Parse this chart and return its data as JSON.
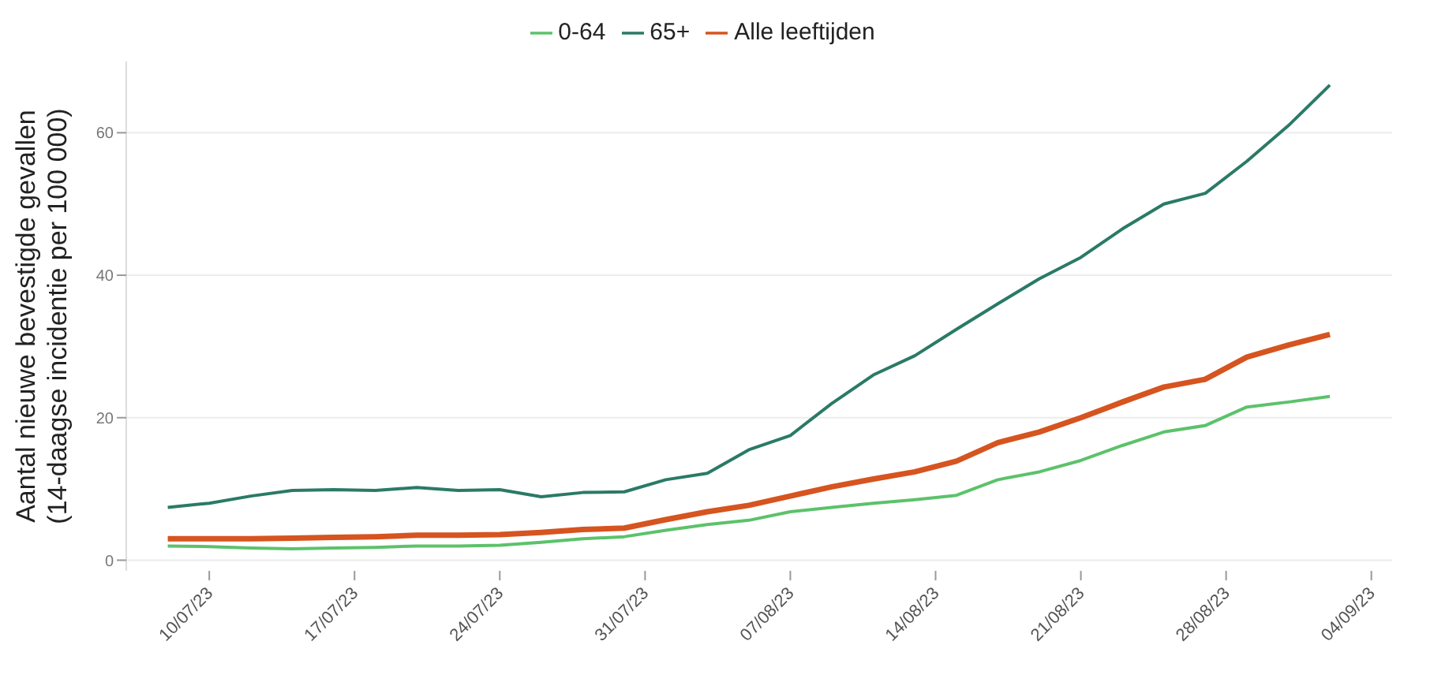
{
  "chart_data": {
    "type": "line",
    "ylabel": "Aantal nieuwe bevestigde gevallen\n(14-daagse incidentie per 100 000)",
    "x": [
      "--07-08",
      "--07-10",
      "--07-12",
      "--07-14",
      "--07-16",
      "--07-18",
      "--07-20",
      "--07-22",
      "--07-24",
      "--07-26",
      "--07-28",
      "--07-30",
      "--08-01",
      "--08-03",
      "--08-05",
      "--08-07",
      "--08-09",
      "--08-11",
      "--08-13",
      "--08-15",
      "--08-17",
      "--08-19",
      "--08-21",
      "--08-23",
      "--08-25",
      "--08-27",
      "--08-29",
      "--08-31",
      "--09-02"
    ],
    "series": [
      {
        "name": "0-64",
        "color": "#5cc26a",
        "values": [
          2.0,
          1.9,
          1.7,
          1.6,
          1.7,
          1.8,
          2.0,
          2.0,
          2.1,
          2.5,
          3.0,
          3.3,
          4.2,
          5.0,
          5.6,
          6.8,
          7.4,
          8.0,
          8.5,
          9.1,
          11.3,
          12.4,
          14.0,
          16.1,
          18.0,
          18.9,
          21.5,
          22.2,
          23.0
        ]
      },
      {
        "name": "65+",
        "color": "#2a7a66",
        "values": [
          7.4,
          8.0,
          9.0,
          9.8,
          9.9,
          9.8,
          10.2,
          9.8,
          9.9,
          8.9,
          9.5,
          9.6,
          11.3,
          12.2,
          15.5,
          17.5,
          22.0,
          26.0,
          28.7,
          32.4,
          36.0,
          39.5,
          42.5,
          46.5,
          50.0,
          51.5,
          56.0,
          61.0,
          66.7
        ]
      },
      {
        "name": "Alle leeftijden",
        "color": "#d6541f",
        "values": [
          3.0,
          3.0,
          3.0,
          3.1,
          3.2,
          3.3,
          3.5,
          3.5,
          3.6,
          3.9,
          4.3,
          4.5,
          5.7,
          6.8,
          7.7,
          9.0,
          10.3,
          11.4,
          12.4,
          13.9,
          16.5,
          18.0,
          20.0,
          22.2,
          24.3,
          25.4,
          28.5,
          30.2,
          31.7
        ]
      }
    ],
    "xlim": [
      "--07-06",
      "--09-05"
    ],
    "xticks": [
      {
        "value": "--07-10",
        "label": "10/07/23"
      },
      {
        "value": "--07-17",
        "label": "17/07/23"
      },
      {
        "value": "--07-24",
        "label": "24/07/23"
      },
      {
        "value": "--07-31",
        "label": "31/07/23"
      },
      {
        "value": "--08-07",
        "label": "07/08/23"
      },
      {
        "value": "--08-14",
        "label": "14/08/23"
      },
      {
        "value": "--08-21",
        "label": "21/08/23"
      },
      {
        "value": "--08-28",
        "label": "28/08/23"
      },
      {
        "value": "--09-04",
        "label": "04/09/23"
      }
    ],
    "ylim": [
      -1.5,
      70
    ],
    "yticks": [
      0,
      20,
      40,
      60
    ],
    "grid": "y",
    "legend": "top",
    "marker": "none",
    "line_style": "solid"
  }
}
